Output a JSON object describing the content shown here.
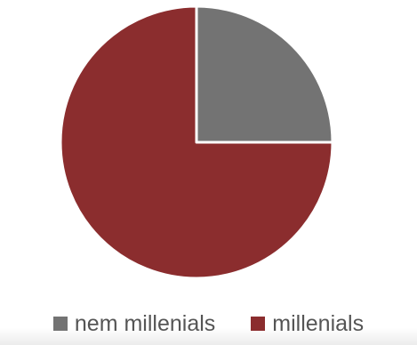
{
  "chart_data": {
    "type": "pie",
    "title": "",
    "categories": [
      "nem millenials",
      "millenials"
    ],
    "values": [
      25,
      75
    ],
    "colors": [
      "#737373",
      "#8b2d2e"
    ],
    "legend": "bottom"
  },
  "legend": {
    "items": [
      {
        "label": "nem millenials",
        "color": "#737373"
      },
      {
        "label": "millenials",
        "color": "#8b2d2e"
      }
    ]
  }
}
